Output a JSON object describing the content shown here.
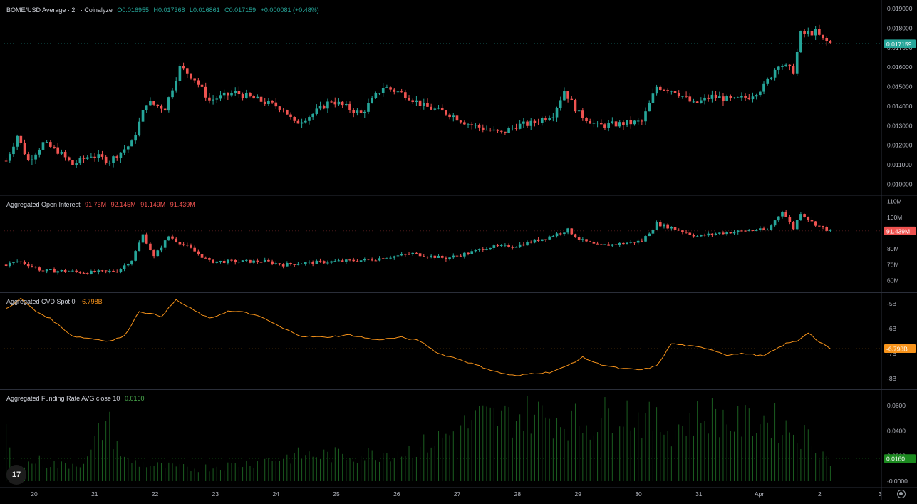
{
  "colors": {
    "background": "#000000",
    "up": "#26a69a",
    "down": "#ef5350",
    "cvd_line": "#f7931a",
    "funding_bar": "#1b5e20",
    "grid": "#1e1e1e",
    "text": "#d1d4dc",
    "axis_text": "#b2b5be"
  },
  "header": {
    "title": "BOME/USD Average · 2h · Coinalyze",
    "open": "O0.016955",
    "high": "H0.017368",
    "low": "L0.016861",
    "close": "C0.017159",
    "change": "+0.000081 (+0.48%)"
  },
  "time_axis": {
    "labels": [
      "20",
      "21",
      "22",
      "23",
      "24",
      "25",
      "26",
      "27",
      "28",
      "29",
      "30",
      "31",
      "Apr",
      "2",
      "3"
    ]
  },
  "logo_text": "17",
  "chart_data": [
    {
      "type": "candlestick",
      "name": "price",
      "axis_ticks": [
        "0.019000",
        "0.018000",
        "0.017000",
        "0.016000",
        "0.015000",
        "0.014000",
        "0.013000",
        "0.012000",
        "0.011000",
        "0.010000"
      ],
      "ylim": [
        0.0095,
        0.0193
      ],
      "last_value": "0.017159",
      "last_value_color": "#26a69a",
      "anchors": [
        [
          0,
          0.0112
        ],
        [
          3,
          0.0125
        ],
        [
          6,
          0.0112
        ],
        [
          10,
          0.0121
        ],
        [
          14,
          0.0117
        ],
        [
          18,
          0.011
        ],
        [
          23,
          0.0115
        ],
        [
          28,
          0.0112
        ],
        [
          34,
          0.0121
        ],
        [
          38,
          0.0142
        ],
        [
          43,
          0.0139
        ],
        [
          47,
          0.016
        ],
        [
          51,
          0.0154
        ],
        [
          55,
          0.0143
        ],
        [
          62,
          0.0147
        ],
        [
          70,
          0.0142
        ],
        [
          75,
          0.0139
        ],
        [
          78,
          0.0131
        ],
        [
          83,
          0.0136
        ],
        [
          88,
          0.0143
        ],
        [
          96,
          0.0136
        ],
        [
          102,
          0.015
        ],
        [
          108,
          0.0146
        ],
        [
          113,
          0.014
        ],
        [
          120,
          0.0136
        ],
        [
          125,
          0.0131
        ],
        [
          130,
          0.0128
        ],
        [
          134,
          0.0126
        ],
        [
          138,
          0.013
        ],
        [
          142,
          0.0131
        ],
        [
          148,
          0.0136
        ],
        [
          151,
          0.0148
        ],
        [
          155,
          0.0136
        ],
        [
          160,
          0.013
        ],
        [
          167,
          0.0131
        ],
        [
          172,
          0.0132
        ],
        [
          176,
          0.015
        ],
        [
          181,
          0.0148
        ],
        [
          186,
          0.0141
        ],
        [
          191,
          0.0145
        ],
        [
          197,
          0.0143
        ],
        [
          201,
          0.0145
        ],
        [
          205,
          0.015
        ],
        [
          209,
          0.0162
        ],
        [
          213,
          0.0158
        ],
        [
          215,
          0.0177
        ],
        [
          219,
          0.0178
        ],
        [
          221,
          0.0174
        ],
        [
          223,
          0.0172
        ]
      ],
      "count": 224
    },
    {
      "type": "candlestick",
      "name": "Aggregated Open Interest",
      "legend_label": "Aggregated Open Interest",
      "legend_values": [
        "91.75M",
        "92.145M",
        "91.149M",
        "91.439M"
      ],
      "axis_ticks": [
        "110M",
        "100M",
        "90M",
        "80M",
        "70M",
        "60M"
      ],
      "ylim": [
        53,
        113
      ],
      "last_value": "91.439M",
      "last_value_color": "#ef5350",
      "anchors": [
        [
          0,
          70
        ],
        [
          3,
          72
        ],
        [
          5,
          71
        ],
        [
          10,
          66
        ],
        [
          16,
          66
        ],
        [
          22,
          65
        ],
        [
          30,
          66
        ],
        [
          34,
          73
        ],
        [
          37,
          89
        ],
        [
          40,
          75
        ],
        [
          44,
          88
        ],
        [
          50,
          80
        ],
        [
          55,
          72
        ],
        [
          62,
          72
        ],
        [
          70,
          72
        ],
        [
          75,
          70
        ],
        [
          80,
          71
        ],
        [
          89,
          72
        ],
        [
          98,
          73
        ],
        [
          110,
          77
        ],
        [
          119,
          74
        ],
        [
          126,
          78
        ],
        [
          130,
          81
        ],
        [
          138,
          82
        ],
        [
          146,
          87
        ],
        [
          152,
          92
        ],
        [
          155,
          86
        ],
        [
          160,
          82
        ],
        [
          165,
          83
        ],
        [
          172,
          85
        ],
        [
          176,
          96
        ],
        [
          182,
          92
        ],
        [
          187,
          88
        ],
        [
          193,
          90
        ],
        [
          198,
          91
        ],
        [
          202,
          92
        ],
        [
          206,
          92
        ],
        [
          210,
          104
        ],
        [
          213,
          93
        ],
        [
          215,
          103
        ],
        [
          218,
          97
        ],
        [
          221,
          93
        ],
        [
          223,
          91.4
        ]
      ],
      "count": 224
    },
    {
      "type": "line",
      "name": "Aggregated CVD Spot",
      "legend_label": "Aggregated CVD Spot 0",
      "legend_value": "-6.798B",
      "axis_ticks": [
        "-5B",
        "-6B",
        "-7B",
        "-8B"
      ],
      "ylim": [
        -8.4,
        -4.6
      ],
      "last_value": "-6.798B",
      "last_value_color": "#f7931a",
      "anchors": [
        [
          0,
          -5.2
        ],
        [
          4,
          -4.8
        ],
        [
          8,
          -5.3
        ],
        [
          12,
          -5.6
        ],
        [
          18,
          -6.3
        ],
        [
          23,
          -6.4
        ],
        [
          28,
          -6.5
        ],
        [
          32,
          -6.3
        ],
        [
          36,
          -5.3
        ],
        [
          42,
          -5.5
        ],
        [
          46,
          -4.85
        ],
        [
          50,
          -5.2
        ],
        [
          55,
          -5.6
        ],
        [
          60,
          -5.3
        ],
        [
          65,
          -5.35
        ],
        [
          70,
          -5.6
        ],
        [
          75,
          -6.0
        ],
        [
          80,
          -6.3
        ],
        [
          86,
          -6.35
        ],
        [
          93,
          -6.25
        ],
        [
          100,
          -6.45
        ],
        [
          107,
          -6.35
        ],
        [
          112,
          -6.5
        ],
        [
          117,
          -7.0
        ],
        [
          122,
          -7.2
        ],
        [
          128,
          -7.5
        ],
        [
          133,
          -7.75
        ],
        [
          138,
          -7.9
        ],
        [
          142,
          -7.8
        ],
        [
          147,
          -7.75
        ],
        [
          151,
          -7.55
        ],
        [
          156,
          -7.15
        ],
        [
          160,
          -7.4
        ],
        [
          166,
          -7.6
        ],
        [
          172,
          -7.65
        ],
        [
          176,
          -7.5
        ],
        [
          180,
          -6.6
        ],
        [
          185,
          -6.7
        ],
        [
          190,
          -6.8
        ],
        [
          195,
          -7.05
        ],
        [
          200,
          -7.0
        ],
        [
          205,
          -7.1
        ],
        [
          208,
          -6.85
        ],
        [
          211,
          -6.6
        ],
        [
          214,
          -6.5
        ],
        [
          217,
          -6.15
        ],
        [
          220,
          -6.55
        ],
        [
          223,
          -6.8
        ]
      ],
      "count": 224
    },
    {
      "type": "bar",
      "name": "Aggregated Funding Rate AVG close 10",
      "legend_label": "Aggregated Funding Rate AVG close 10",
      "legend_value": "0.0160",
      "axis_ticks": [
        "0.0600",
        "0.0400",
        "0.0200",
        "-0.0000"
      ],
      "ylim": [
        -0.004,
        0.072
      ],
      "last_value": "0.0160",
      "last_value_color": "#1b8a1f",
      "anchors": [
        [
          0,
          0.05
        ],
        [
          2,
          0.01
        ],
        [
          8,
          0.02
        ],
        [
          15,
          0.015
        ],
        [
          22,
          0.02
        ],
        [
          27,
          0.06
        ],
        [
          32,
          0.02
        ],
        [
          40,
          0.015
        ],
        [
          50,
          0.012
        ],
        [
          60,
          0.015
        ],
        [
          70,
          0.02
        ],
        [
          80,
          0.025
        ],
        [
          95,
          0.025
        ],
        [
          110,
          0.03
        ],
        [
          120,
          0.045
        ],
        [
          128,
          0.06
        ],
        [
          135,
          0.06
        ],
        [
          142,
          0.065
        ],
        [
          150,
          0.06
        ],
        [
          158,
          0.055
        ],
        [
          166,
          0.07
        ],
        [
          172,
          0.06
        ],
        [
          180,
          0.05
        ],
        [
          190,
          0.065
        ],
        [
          198,
          0.055
        ],
        [
          206,
          0.06
        ],
        [
          212,
          0.05
        ],
        [
          218,
          0.04
        ],
        [
          223,
          0.018
        ]
      ],
      "count": 224
    }
  ]
}
